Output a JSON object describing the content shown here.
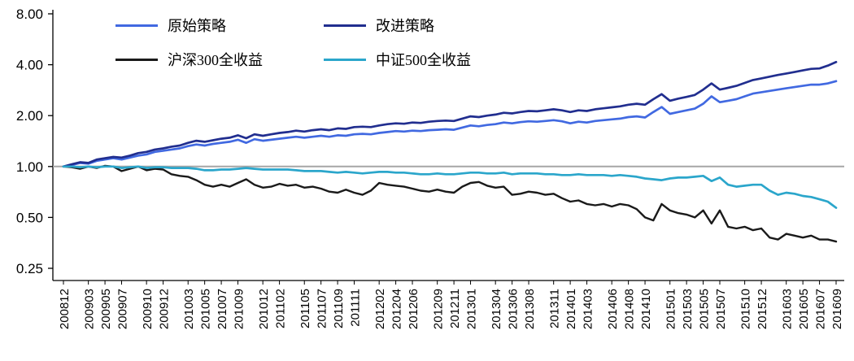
{
  "chart_data": {
    "type": "line",
    "title": "",
    "y_scale": "log2",
    "ylim": [
      0.25,
      8.0
    ],
    "y_tick_labels": [
      "8.00",
      "4.00",
      "2.00",
      "1.00",
      "0.50",
      "0.25"
    ],
    "baseline": {
      "value": 1.0,
      "color": "#A6A6A6"
    },
    "x_start": "200812",
    "x_end": "201609",
    "x_interval": "monthly",
    "x_tick_labels": [
      "200812",
      "200903",
      "200905",
      "200907",
      "200910",
      "200912",
      "201003",
      "201005",
      "201007",
      "201009",
      "201012",
      "201102",
      "201105",
      "201107",
      "201109",
      "201111",
      "201202",
      "201204",
      "201206",
      "201209",
      "201211",
      "201301",
      "201304",
      "201306",
      "201308",
      "201311",
      "201401",
      "201403",
      "201406",
      "201408",
      "201410",
      "201501",
      "201503",
      "201505",
      "201507",
      "201510",
      "201512",
      "201603",
      "201605",
      "201607",
      "201609"
    ],
    "legend_position": "top-left",
    "grid": false,
    "axis_color": "#000000",
    "series": [
      {
        "name": "原始策略",
        "color": "#4169E1",
        "values": [
          1.0,
          1.02,
          1.05,
          1.04,
          1.08,
          1.1,
          1.12,
          1.1,
          1.13,
          1.16,
          1.18,
          1.22,
          1.24,
          1.26,
          1.28,
          1.32,
          1.35,
          1.33,
          1.36,
          1.38,
          1.4,
          1.44,
          1.38,
          1.45,
          1.42,
          1.44,
          1.46,
          1.48,
          1.5,
          1.48,
          1.5,
          1.52,
          1.5,
          1.53,
          1.52,
          1.55,
          1.56,
          1.55,
          1.58,
          1.6,
          1.62,
          1.61,
          1.63,
          1.62,
          1.64,
          1.65,
          1.66,
          1.65,
          1.7,
          1.75,
          1.73,
          1.76,
          1.78,
          1.82,
          1.8,
          1.83,
          1.85,
          1.84,
          1.86,
          1.88,
          1.85,
          1.8,
          1.84,
          1.82,
          1.86,
          1.88,
          1.9,
          1.92,
          1.96,
          1.98,
          1.95,
          2.1,
          2.25,
          2.05,
          2.1,
          2.15,
          2.2,
          2.35,
          2.6,
          2.4,
          2.45,
          2.5,
          2.6,
          2.7,
          2.75,
          2.8,
          2.85,
          2.9,
          2.95,
          3.0,
          3.05,
          3.05,
          3.1,
          3.2
        ]
      },
      {
        "name": "改进策略",
        "color": "#212E8F",
        "values": [
          1.0,
          1.03,
          1.06,
          1.05,
          1.1,
          1.12,
          1.14,
          1.13,
          1.16,
          1.2,
          1.22,
          1.26,
          1.28,
          1.31,
          1.33,
          1.38,
          1.42,
          1.4,
          1.43,
          1.46,
          1.48,
          1.53,
          1.47,
          1.55,
          1.52,
          1.55,
          1.58,
          1.6,
          1.63,
          1.61,
          1.64,
          1.66,
          1.64,
          1.68,
          1.67,
          1.71,
          1.72,
          1.71,
          1.75,
          1.78,
          1.8,
          1.79,
          1.82,
          1.81,
          1.84,
          1.86,
          1.87,
          1.86,
          1.92,
          1.98,
          1.96,
          2.0,
          2.03,
          2.08,
          2.06,
          2.1,
          2.13,
          2.12,
          2.15,
          2.18,
          2.15,
          2.1,
          2.15,
          2.13,
          2.18,
          2.21,
          2.24,
          2.27,
          2.32,
          2.35,
          2.32,
          2.5,
          2.68,
          2.45,
          2.52,
          2.58,
          2.65,
          2.85,
          3.1,
          2.85,
          2.92,
          3.0,
          3.12,
          3.25,
          3.32,
          3.4,
          3.48,
          3.55,
          3.62,
          3.7,
          3.78,
          3.8,
          3.95,
          4.15
        ]
      },
      {
        "name": "沪深300全收益",
        "color": "#1A1A1A",
        "values": [
          1.0,
          0.99,
          0.97,
          1.0,
          0.98,
          1.01,
          1.0,
          0.94,
          0.97,
          1.0,
          0.95,
          0.97,
          0.96,
          0.9,
          0.88,
          0.87,
          0.83,
          0.78,
          0.76,
          0.78,
          0.76,
          0.8,
          0.84,
          0.78,
          0.75,
          0.76,
          0.79,
          0.77,
          0.78,
          0.75,
          0.76,
          0.74,
          0.71,
          0.7,
          0.73,
          0.7,
          0.68,
          0.72,
          0.8,
          0.78,
          0.77,
          0.76,
          0.74,
          0.72,
          0.71,
          0.73,
          0.71,
          0.7,
          0.76,
          0.8,
          0.81,
          0.77,
          0.75,
          0.76,
          0.68,
          0.69,
          0.71,
          0.7,
          0.68,
          0.69,
          0.65,
          0.62,
          0.63,
          0.6,
          0.59,
          0.6,
          0.58,
          0.6,
          0.59,
          0.56,
          0.5,
          0.48,
          0.6,
          0.55,
          0.53,
          0.52,
          0.5,
          0.55,
          0.46,
          0.55,
          0.44,
          0.43,
          0.44,
          0.42,
          0.43,
          0.38,
          0.37,
          0.4,
          0.39,
          0.38,
          0.39,
          0.37,
          0.37,
          0.36
        ]
      },
      {
        "name": "中证500全收益",
        "color": "#2BA6CB",
        "values": [
          1.0,
          1.0,
          0.99,
          1.0,
          0.99,
          1.0,
          1.0,
          0.98,
          0.99,
          1.0,
          0.98,
          0.99,
          0.99,
          0.98,
          0.98,
          0.98,
          0.97,
          0.95,
          0.95,
          0.96,
          0.96,
          0.97,
          0.98,
          0.97,
          0.96,
          0.96,
          0.96,
          0.96,
          0.95,
          0.94,
          0.94,
          0.94,
          0.93,
          0.92,
          0.93,
          0.92,
          0.91,
          0.92,
          0.93,
          0.93,
          0.92,
          0.92,
          0.91,
          0.9,
          0.9,
          0.91,
          0.9,
          0.9,
          0.91,
          0.92,
          0.92,
          0.91,
          0.91,
          0.92,
          0.9,
          0.91,
          0.91,
          0.91,
          0.9,
          0.9,
          0.89,
          0.89,
          0.9,
          0.89,
          0.89,
          0.89,
          0.88,
          0.89,
          0.88,
          0.87,
          0.85,
          0.84,
          0.83,
          0.85,
          0.86,
          0.86,
          0.87,
          0.88,
          0.82,
          0.86,
          0.78,
          0.76,
          0.77,
          0.78,
          0.78,
          0.72,
          0.68,
          0.7,
          0.69,
          0.67,
          0.66,
          0.64,
          0.62,
          0.57
        ]
      }
    ]
  }
}
